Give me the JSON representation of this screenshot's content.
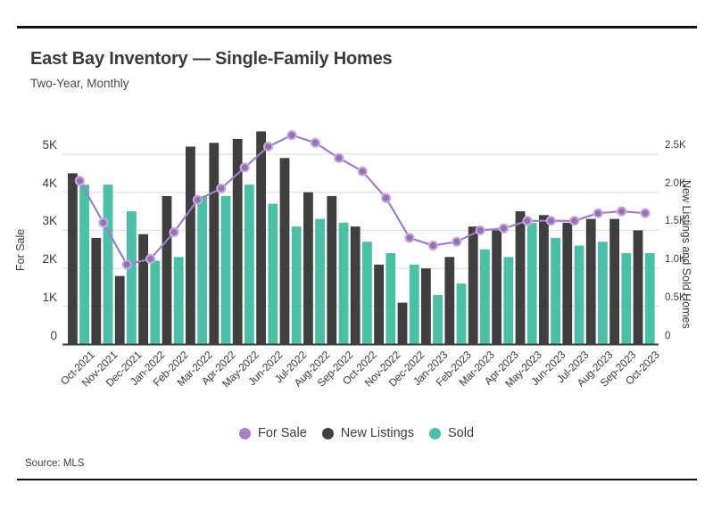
{
  "header": {
    "title": "East Bay Inventory — Single-Family Homes",
    "subtitle": "Two-Year, Monthly"
  },
  "source": "Source: MLS",
  "legend": {
    "items": [
      {
        "label": "For Sale",
        "color": "#A682C8"
      },
      {
        "label": "New Listings",
        "color": "#3F3F3F"
      },
      {
        "label": "Sold",
        "color": "#4CBFA7"
      }
    ]
  },
  "chart_data": {
    "type": "combo-bar-line",
    "title": "East Bay Inventory — Single-Family Homes",
    "subtitle": "Two-Year, Monthly",
    "categories": [
      "Oct-2021",
      "Nov-2021",
      "Dec-2021",
      "Jan-2022",
      "Feb-2022",
      "Mar-2022",
      "Apr-2022",
      "May-2022",
      "Jun-2022",
      "Jul-2022",
      "Aug-2022",
      "Sep-2022",
      "Oct-2022",
      "Nov-2022",
      "Dec-2022",
      "Jan-2023",
      "Feb-2023",
      "Mar-2023",
      "Apr-2023",
      "May-2023",
      "Jun-2023",
      "Jul-2023",
      "Aug-2023",
      "Sep-2023",
      "Oct-2023"
    ],
    "series": [
      {
        "name": "For Sale",
        "type": "line",
        "axis": "left",
        "color": "#9E7FC7",
        "marker_fill": "#9770B4",
        "marker_ring": "#C7ABE0",
        "values": [
          4300,
          3200,
          2100,
          2250,
          2950,
          3800,
          4100,
          4650,
          5200,
          5500,
          5300,
          4900,
          4550,
          3850,
          2800,
          2600,
          2700,
          3000,
          3050,
          3250,
          3250,
          3250,
          3450,
          3500,
          3450
        ]
      },
      {
        "name": "New Listings",
        "type": "bar",
        "axis": "right",
        "color": "#3F3F3F",
        "values": [
          2250,
          1400,
          900,
          1450,
          1950,
          2600,
          2650,
          2700,
          2800,
          2450,
          2000,
          1950,
          1550,
          1050,
          550,
          1000,
          1150,
          1550,
          1500,
          1750,
          1700,
          1600,
          1650,
          1650,
          1500
        ]
      },
      {
        "name": "Sold",
        "type": "bar",
        "axis": "right",
        "color": "#4CBFA7",
        "values": [
          2100,
          2100,
          1750,
          1100,
          1150,
          1950,
          1950,
          2100,
          1850,
          1550,
          1650,
          1600,
          1350,
          1200,
          1050,
          650,
          800,
          1250,
          1150,
          1600,
          1400,
          1300,
          1350,
          1200,
          1200
        ]
      }
    ],
    "left_axis": {
      "title": "For Sale",
      "ticks": [
        "0",
        "1K",
        "2K",
        "3K",
        "4K",
        "5K"
      ],
      "tick_values": [
        0,
        1000,
        2000,
        3000,
        4000,
        5000
      ],
      "range": [
        0,
        5600
      ]
    },
    "right_axis": {
      "title": "New Listings and Sold Homes",
      "ticks": [
        "0",
        "0.5K",
        "1.0K",
        "1.5K",
        "2.0K",
        "2.5K"
      ],
      "tick_values": [
        0,
        500,
        1000,
        1500,
        2000,
        2500
      ],
      "range": [
        0,
        2800
      ]
    },
    "grid": true,
    "legend_position": "bottom",
    "gridline_color": "#DBDBDB",
    "axis_line_color": "#3D3D3D"
  }
}
